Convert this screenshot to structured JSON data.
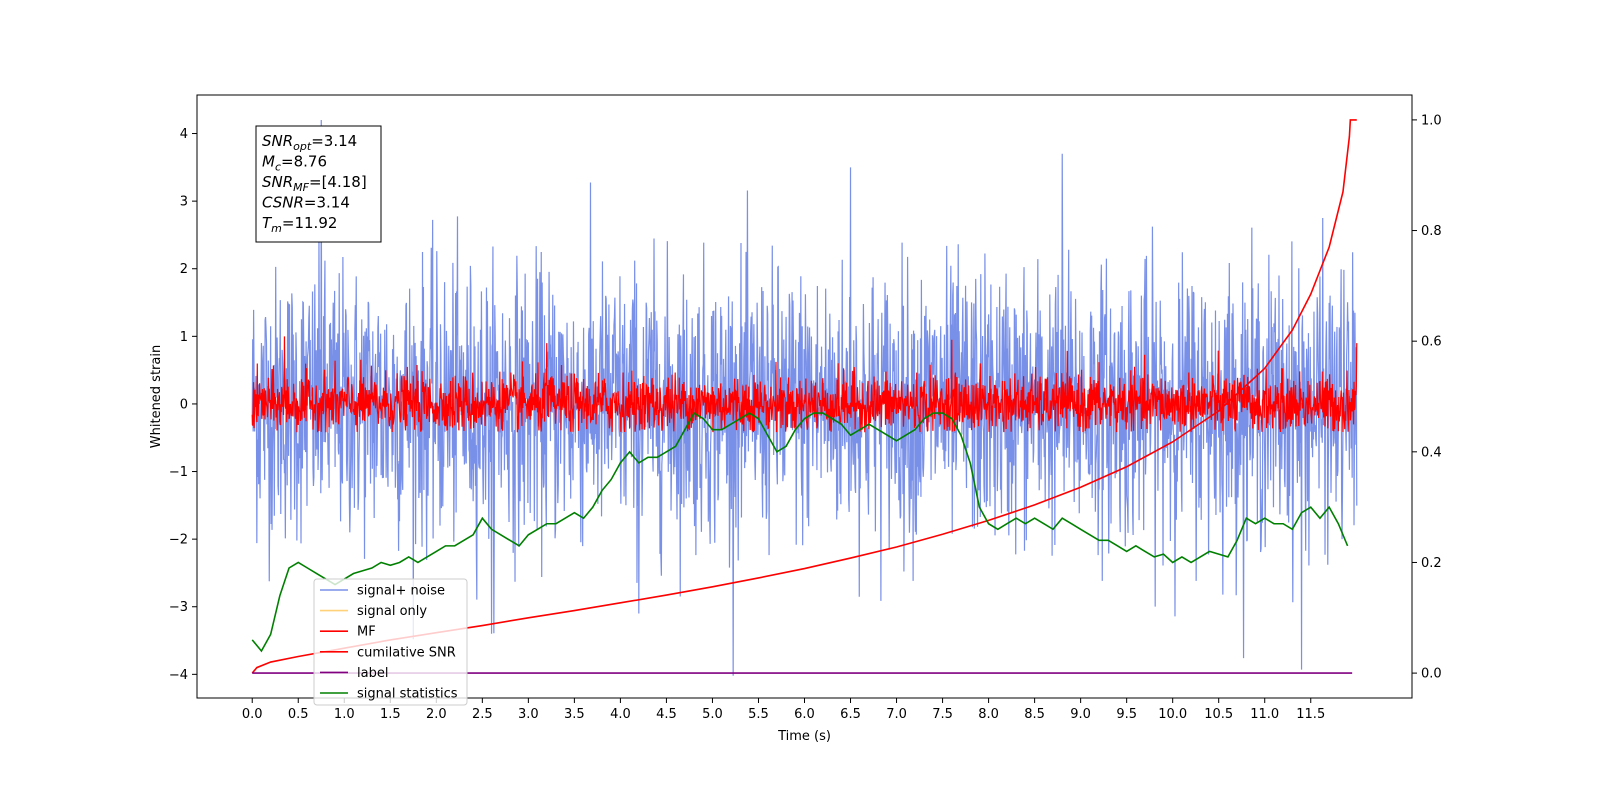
{
  "chart_data": {
    "type": "line",
    "xlabel": "Time (s)",
    "ylabel": "Whitened strain",
    "xlim": [
      -0.6,
      12.6
    ],
    "ylim": [
      -4.35,
      4.57
    ],
    "ylim_right": [
      -0.045,
      1.045
    ],
    "xticks": [
      0.0,
      0.5,
      1.0,
      1.5,
      2.0,
      2.5,
      3.0,
      3.5,
      4.0,
      4.5,
      5.0,
      5.5,
      6.0,
      6.5,
      7.0,
      7.5,
      8.0,
      8.5,
      9.0,
      9.5,
      10.0,
      10.5,
      11.0,
      11.5
    ],
    "xtick_labels": [
      "0.0",
      "0.5",
      "1.0",
      "1.5",
      "2.0",
      "2.5",
      "3.0",
      "3.5",
      "4.0",
      "4.5",
      "5.0",
      "5.5",
      "6.0",
      "6.5",
      "7.0",
      "7.5",
      "8.0",
      "8.5",
      "9.0",
      "9.5",
      "10.0",
      "10.5",
      "11.0",
      "11.5"
    ],
    "yticks": [
      -4,
      -3,
      -2,
      -1,
      0,
      1,
      2,
      3,
      4
    ],
    "ytick_labels": [
      "−4",
      "−3",
      "−2",
      "−1",
      "0",
      "1",
      "2",
      "3",
      "4"
    ],
    "yticks_right": [
      0.0,
      0.2,
      0.4,
      0.6,
      0.8,
      1.0
    ],
    "ytick_right_labels": [
      "0.0",
      "0.2",
      "0.4",
      "0.6",
      "0.8",
      "1.0"
    ],
    "legend_position": "lower-left",
    "annotation": {
      "lines": [
        {
          "sym": "SNR",
          "sub": "opt",
          "val": "=3.14"
        },
        {
          "sym": "M",
          "sub": "c",
          "val": "=8.76"
        },
        {
          "sym": "SNR",
          "sub": "MF",
          "val": "=[4.18]"
        },
        {
          "sym": "CSNR",
          "sub": "",
          "val": "=3.14"
        },
        {
          "sym": "T",
          "sub": "m",
          "val": "=11.92"
        }
      ]
    },
    "series": [
      {
        "name": "signal+ noise",
        "color": "#7990e8",
        "axis": "left",
        "style": "noise",
        "x_range": [
          0.0,
          12.0
        ],
        "amplitude": 1.0,
        "spikes": [
          [
            0.75,
            4.2
          ],
          [
            8.8,
            3.7
          ],
          [
            11.4,
            -3.93
          ],
          [
            4.2,
            -3.1
          ],
          [
            6.5,
            3.5
          ],
          [
            2.6,
            -3.4
          ]
        ]
      },
      {
        "name": "signal only",
        "color": "#ffd27a",
        "axis": "left",
        "style": "hidden",
        "x_range": [
          0.0,
          12.0
        ]
      },
      {
        "name": "MF",
        "color": "#ff0000",
        "axis": "left",
        "style": "noise",
        "x_range": [
          0.0,
          12.0
        ],
        "amplitude": 0.22,
        "floor": -0.42,
        "spikes": [
          [
            0.35,
            1.0
          ],
          [
            3.2,
            0.9
          ],
          [
            7.6,
            0.95
          ],
          [
            12.0,
            0.9
          ]
        ]
      },
      {
        "name": "cumilative SNR",
        "color": "#ff0000",
        "axis": "right",
        "style": "line",
        "x": [
          0.0,
          0.05,
          0.2,
          0.5,
          1.0,
          1.5,
          2.0,
          2.5,
          3.0,
          3.5,
          4.0,
          4.5,
          5.0,
          5.5,
          6.0,
          6.5,
          7.0,
          7.5,
          8.0,
          8.5,
          9.0,
          9.5,
          10.0,
          10.5,
          11.0,
          11.3,
          11.5,
          11.7,
          11.85,
          11.92,
          11.93,
          12.0
        ],
        "y": [
          0.0,
          0.01,
          0.02,
          0.03,
          0.045,
          0.06,
          0.073,
          0.086,
          0.1,
          0.113,
          0.127,
          0.141,
          0.156,
          0.172,
          0.189,
          0.208,
          0.228,
          0.251,
          0.276,
          0.304,
          0.336,
          0.373,
          0.418,
          0.474,
          0.551,
          0.62,
          0.685,
          0.77,
          0.87,
          0.97,
          1.0,
          1.0
        ]
      },
      {
        "name": "label",
        "color": "#800080",
        "axis": "right",
        "style": "line",
        "x": [
          0.0,
          11.95
        ],
        "y": [
          0.0,
          0.0
        ]
      },
      {
        "name": "signal statistics",
        "color": "#008000",
        "axis": "right",
        "style": "line",
        "x": [
          0.0,
          0.1,
          0.2,
          0.3,
          0.4,
          0.5,
          0.6,
          0.7,
          0.8,
          0.9,
          1.0,
          1.1,
          1.2,
          1.3,
          1.4,
          1.5,
          1.6,
          1.7,
          1.8,
          1.9,
          2.0,
          2.1,
          2.2,
          2.3,
          2.4,
          2.5,
          2.6,
          2.7,
          2.8,
          2.9,
          3.0,
          3.1,
          3.2,
          3.3,
          3.4,
          3.5,
          3.6,
          3.7,
          3.8,
          3.9,
          4.0,
          4.1,
          4.2,
          4.3,
          4.4,
          4.5,
          4.6,
          4.7,
          4.8,
          4.9,
          5.0,
          5.1,
          5.2,
          5.3,
          5.4,
          5.5,
          5.6,
          5.7,
          5.8,
          5.9,
          6.0,
          6.1,
          6.2,
          6.3,
          6.4,
          6.5,
          6.6,
          6.7,
          6.8,
          6.9,
          7.0,
          7.1,
          7.2,
          7.3,
          7.4,
          7.5,
          7.6,
          7.7,
          7.8,
          7.9,
          8.0,
          8.1,
          8.2,
          8.3,
          8.4,
          8.5,
          8.6,
          8.7,
          8.8,
          8.9,
          9.0,
          9.1,
          9.2,
          9.3,
          9.4,
          9.5,
          9.6,
          9.7,
          9.8,
          9.9,
          10.0,
          10.1,
          10.2,
          10.3,
          10.4,
          10.5,
          10.6,
          10.7,
          10.8,
          10.9,
          11.0,
          11.1,
          11.2,
          11.3,
          11.4,
          11.5,
          11.6,
          11.7,
          11.8,
          11.9
        ],
        "y": [
          0.06,
          0.04,
          0.07,
          0.14,
          0.19,
          0.2,
          0.19,
          0.18,
          0.17,
          0.16,
          0.17,
          0.18,
          0.185,
          0.19,
          0.2,
          0.195,
          0.2,
          0.21,
          0.2,
          0.21,
          0.22,
          0.23,
          0.23,
          0.24,
          0.25,
          0.28,
          0.26,
          0.25,
          0.24,
          0.23,
          0.25,
          0.26,
          0.27,
          0.27,
          0.28,
          0.29,
          0.28,
          0.3,
          0.33,
          0.35,
          0.38,
          0.4,
          0.38,
          0.39,
          0.39,
          0.4,
          0.41,
          0.44,
          0.47,
          0.46,
          0.44,
          0.44,
          0.45,
          0.46,
          0.47,
          0.46,
          0.43,
          0.4,
          0.41,
          0.44,
          0.46,
          0.47,
          0.47,
          0.46,
          0.45,
          0.43,
          0.44,
          0.45,
          0.44,
          0.43,
          0.42,
          0.43,
          0.44,
          0.46,
          0.47,
          0.47,
          0.46,
          0.43,
          0.38,
          0.3,
          0.27,
          0.26,
          0.27,
          0.28,
          0.27,
          0.28,
          0.27,
          0.26,
          0.28,
          0.27,
          0.26,
          0.25,
          0.24,
          0.24,
          0.23,
          0.22,
          0.23,
          0.22,
          0.21,
          0.215,
          0.2,
          0.21,
          0.2,
          0.21,
          0.22,
          0.215,
          0.21,
          0.24,
          0.28,
          0.27,
          0.28,
          0.27,
          0.27,
          0.26,
          0.29,
          0.3,
          0.28,
          0.3,
          0.27,
          0.23
        ]
      }
    ]
  }
}
